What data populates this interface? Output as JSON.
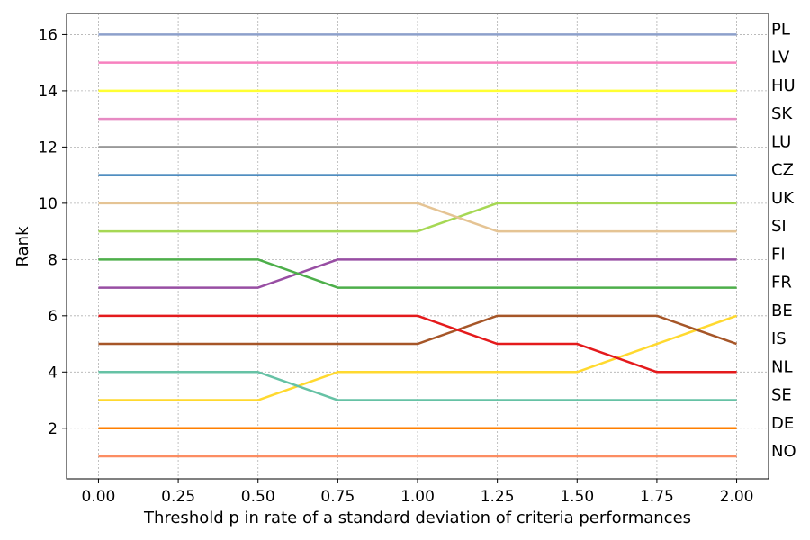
{
  "chart_data": {
    "type": "line",
    "title": "",
    "xlabel": "Threshold p in rate of a standard deviation of criteria performances",
    "ylabel": "Rank",
    "x": [
      0.0,
      0.25,
      0.5,
      0.75,
      1.0,
      1.25,
      1.5,
      1.75,
      2.0
    ],
    "x_ticks": [
      "0.00",
      "0.25",
      "0.50",
      "0.75",
      "1.00",
      "1.25",
      "1.50",
      "1.75",
      "2.00"
    ],
    "y_ticks": [
      "2",
      "4",
      "6",
      "8",
      "10",
      "12",
      "14",
      "16"
    ],
    "xlim": [
      -0.1,
      2.1
    ],
    "ylim": [
      0.2,
      16.75
    ],
    "grid": true,
    "right_labels": [
      "PL",
      "LV",
      "HU",
      "SK",
      "LU",
      "CZ",
      "UK",
      "SI",
      "FI",
      "FR",
      "BE",
      "IS",
      "NL",
      "SE",
      "DE",
      "NO"
    ],
    "series": [
      {
        "color": "#fc8d62",
        "values": [
          1,
          1,
          1,
          1,
          1,
          1,
          1,
          1,
          1
        ]
      },
      {
        "color": "#ff7f00",
        "values": [
          2,
          2,
          2,
          2,
          2,
          2,
          2,
          2,
          2
        ]
      },
      {
        "color": "#ffd92f",
        "values": [
          3,
          3,
          3,
          4,
          4,
          4,
          4,
          5,
          6
        ]
      },
      {
        "color": "#66c2a5",
        "values": [
          4,
          4,
          4,
          3,
          3,
          3,
          3,
          3,
          3
        ]
      },
      {
        "color": "#a65628",
        "values": [
          5,
          5,
          5,
          5,
          5,
          6,
          6,
          6,
          5
        ]
      },
      {
        "color": "#e41a1c",
        "values": [
          6,
          6,
          6,
          6,
          6,
          5,
          5,
          4,
          4
        ]
      },
      {
        "color": "#984ea3",
        "values": [
          7,
          7,
          7,
          8,
          8,
          8,
          8,
          8,
          8
        ]
      },
      {
        "color": "#4daf4a",
        "values": [
          8,
          8,
          8,
          7,
          7,
          7,
          7,
          7,
          7
        ]
      },
      {
        "color": "#a6d854",
        "values": [
          9,
          9,
          9,
          9,
          9,
          10,
          10,
          10,
          10
        ]
      },
      {
        "color": "#e5c494",
        "values": [
          10,
          10,
          10,
          10,
          10,
          9,
          9,
          9,
          9
        ]
      },
      {
        "color": "#377eb8",
        "values": [
          11,
          11,
          11,
          11,
          11,
          11,
          11,
          11,
          11
        ]
      },
      {
        "color": "#999999",
        "values": [
          12,
          12,
          12,
          12,
          12,
          12,
          12,
          12,
          12
        ]
      },
      {
        "color": "#e78ac3",
        "values": [
          13,
          13,
          13,
          13,
          13,
          13,
          13,
          13,
          13
        ]
      },
      {
        "color": "#ffff33",
        "values": [
          14,
          14,
          14,
          14,
          14,
          14,
          14,
          14,
          14
        ]
      },
      {
        "color": "#f781bf",
        "values": [
          15,
          15,
          15,
          15,
          15,
          15,
          15,
          15,
          15
        ]
      },
      {
        "color": "#8da0cb",
        "values": [
          16,
          16,
          16,
          16,
          16,
          16,
          16,
          16,
          16
        ]
      }
    ]
  }
}
